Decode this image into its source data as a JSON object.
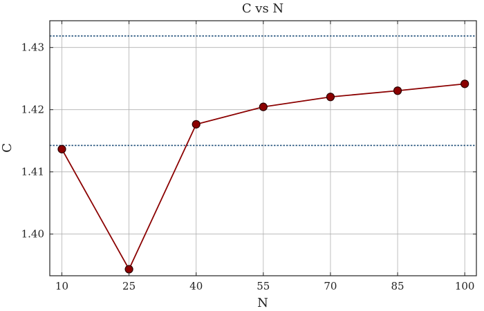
{
  "chart_data": {
    "type": "line",
    "title": "C vs N",
    "xlabel": "N",
    "ylabel": "C",
    "x": [
      10,
      25,
      40,
      55,
      70,
      85,
      100
    ],
    "series": [
      {
        "values": [
          1.41365,
          1.39435,
          1.41765,
          1.42045,
          1.42205,
          1.42305,
          1.42415
        ]
      }
    ],
    "reference_lines": [
      1.43185,
      1.41425
    ],
    "xlim": [
      7.3,
      102.6
    ],
    "ylim": [
      1.3933,
      1.4343
    ],
    "xticks": [
      10,
      25,
      40,
      55,
      70,
      85,
      100
    ],
    "yticks": [
      1.4,
      1.41,
      1.42,
      1.43
    ],
    "ytick_labels": [
      "1.40",
      "1.41",
      "1.42",
      "1.43"
    ],
    "grid": true,
    "colors": {
      "series": "#8b0000",
      "marker_edge": "#2b0000",
      "reference": "#1f4e79"
    }
  }
}
